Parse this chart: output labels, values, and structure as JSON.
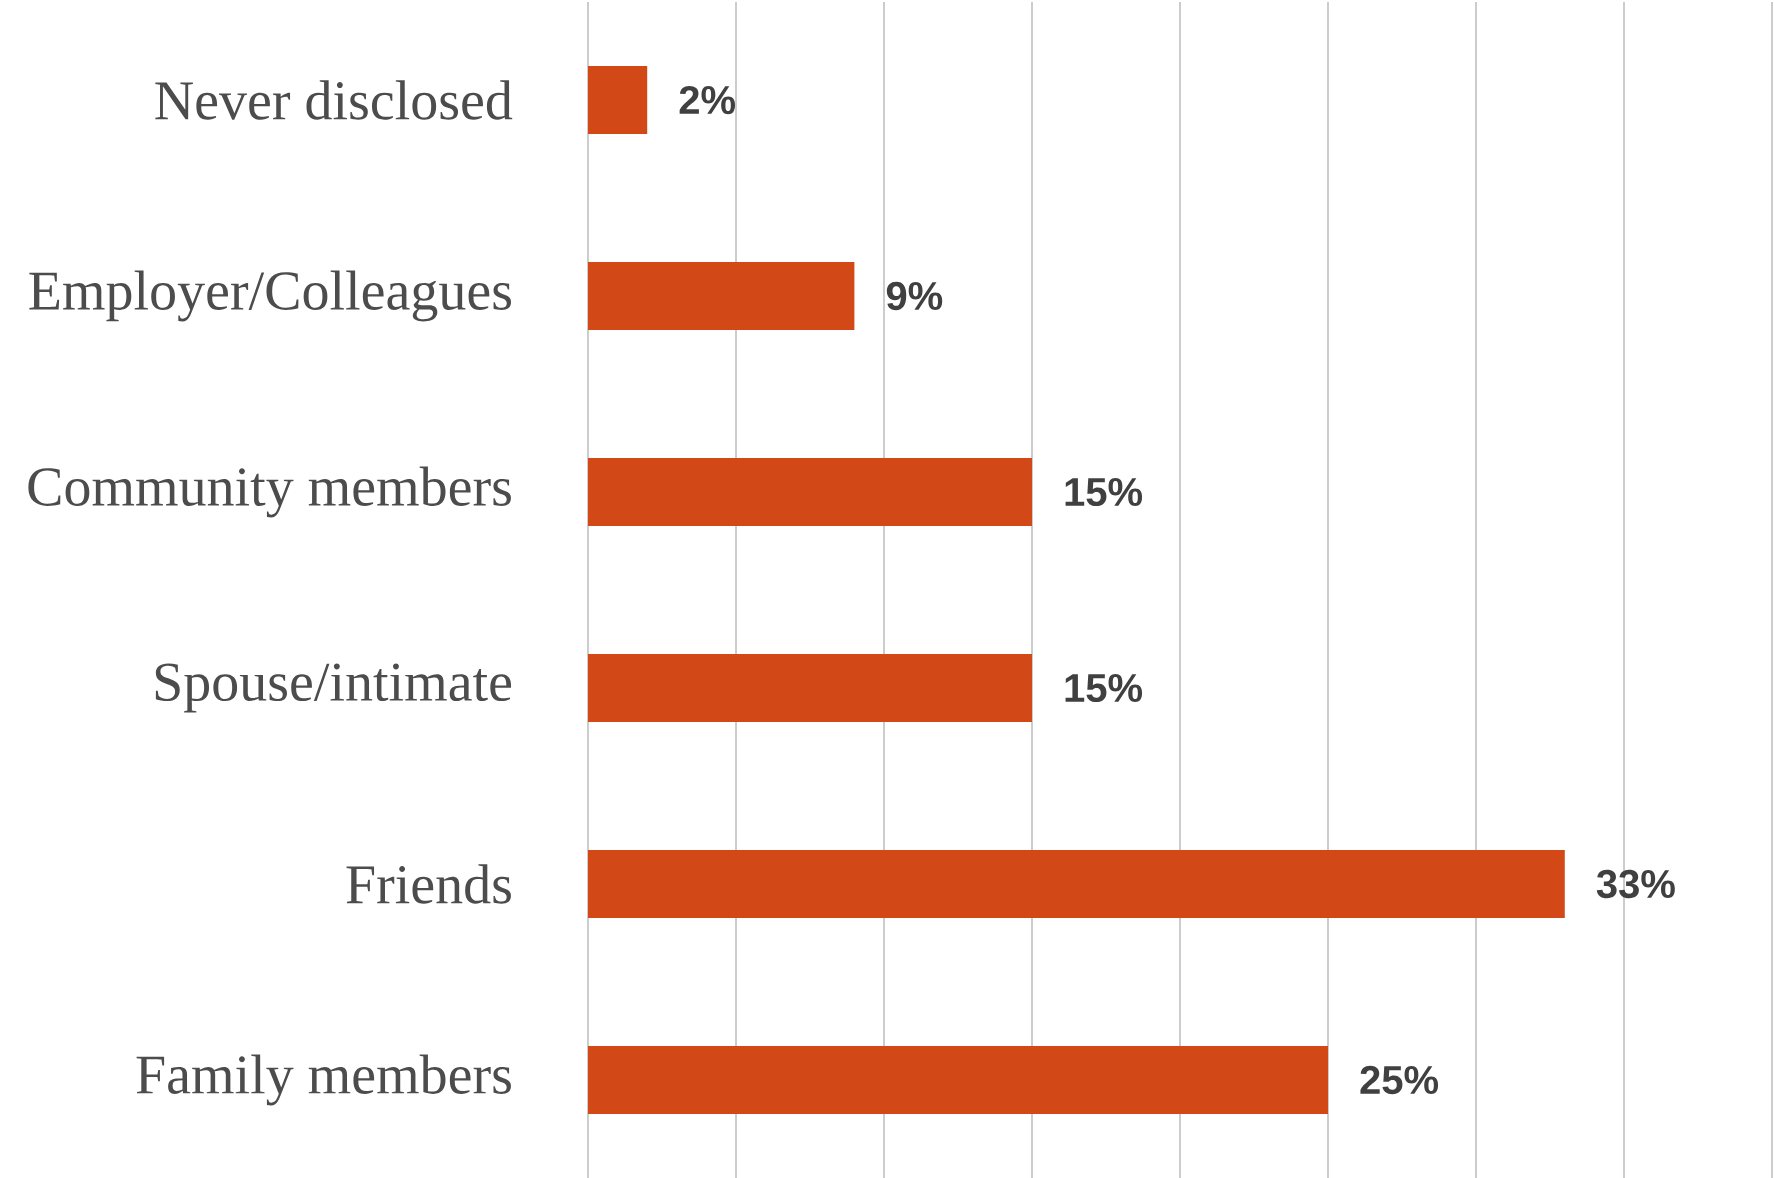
{
  "chart_data": {
    "type": "bar",
    "orientation": "horizontal",
    "categories": [
      "Never disclosed",
      "Employer/Colleagues",
      "Community members",
      "Spouse/intimate",
      "Friends",
      "Family members"
    ],
    "values": [
      2,
      9,
      15,
      15,
      33,
      25
    ],
    "value_labels": [
      "2%",
      "9%",
      "15%",
      "15%",
      "33%",
      "25%"
    ],
    "color": "#d34817",
    "xlim": [
      0,
      40
    ],
    "xticks": [
      {
        "value": 0,
        "label": null
      },
      {
        "value": 5,
        "label": null
      },
      {
        "value": 10,
        "label": null
      },
      {
        "value": 15,
        "label": null
      },
      {
        "value": 20,
        "label": null
      },
      {
        "value": 25,
        "label": null
      },
      {
        "value": 30,
        "label": null
      },
      {
        "value": 35,
        "label": null
      },
      {
        "value": 40,
        "label": null
      }
    ],
    "grid": "x",
    "tick_labels": "y"
  }
}
